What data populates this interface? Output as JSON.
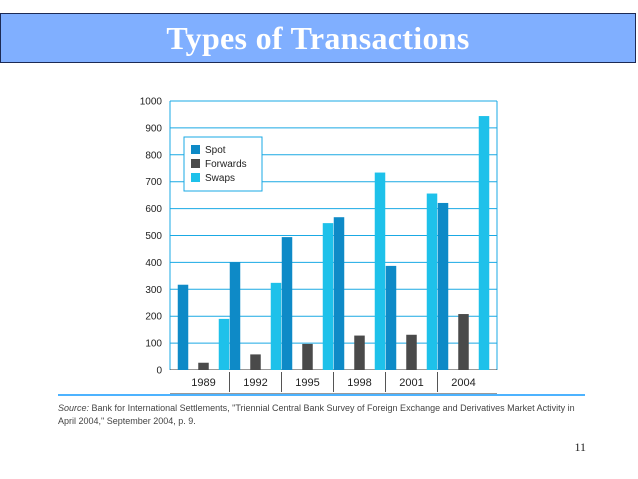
{
  "slide": {
    "title": "Types of Transactions",
    "page_number": "11",
    "source_label": "Source:",
    "source_text": "Bank for International Settlements, \"Triennial Central Bank Survey of Foreign Exchange and Derivatives Market Activity in April 2004,\" September 2004, p. 9."
  },
  "colors": {
    "title_bg": "#80afff",
    "spot": "#0e8ac7",
    "forwards": "#4a4a4a",
    "swaps": "#1ec1ea",
    "gridline": "#1aa9e4",
    "source_rule": "#4db3ff"
  },
  "chart_data": {
    "type": "bar",
    "categories": [
      "1989",
      "1992",
      "1995",
      "1998",
      "2001",
      "2004"
    ],
    "series": [
      {
        "name": "Spot",
        "values": [
          317,
          401,
          494,
          568,
          387,
          621
        ]
      },
      {
        "name": "Forwards",
        "values": [
          27,
          58,
          97,
          128,
          131,
          208
        ]
      },
      {
        "name": "Swaps",
        "values": [
          190,
          324,
          546,
          734,
          656,
          944
        ]
      }
    ],
    "y_ticks": [
      "0",
      "100",
      "200",
      "300",
      "400",
      "500",
      "600",
      "700",
      "800",
      "900",
      "1000"
    ],
    "ylim": [
      0,
      1000
    ],
    "grid": true,
    "legend_position": "top-left"
  }
}
